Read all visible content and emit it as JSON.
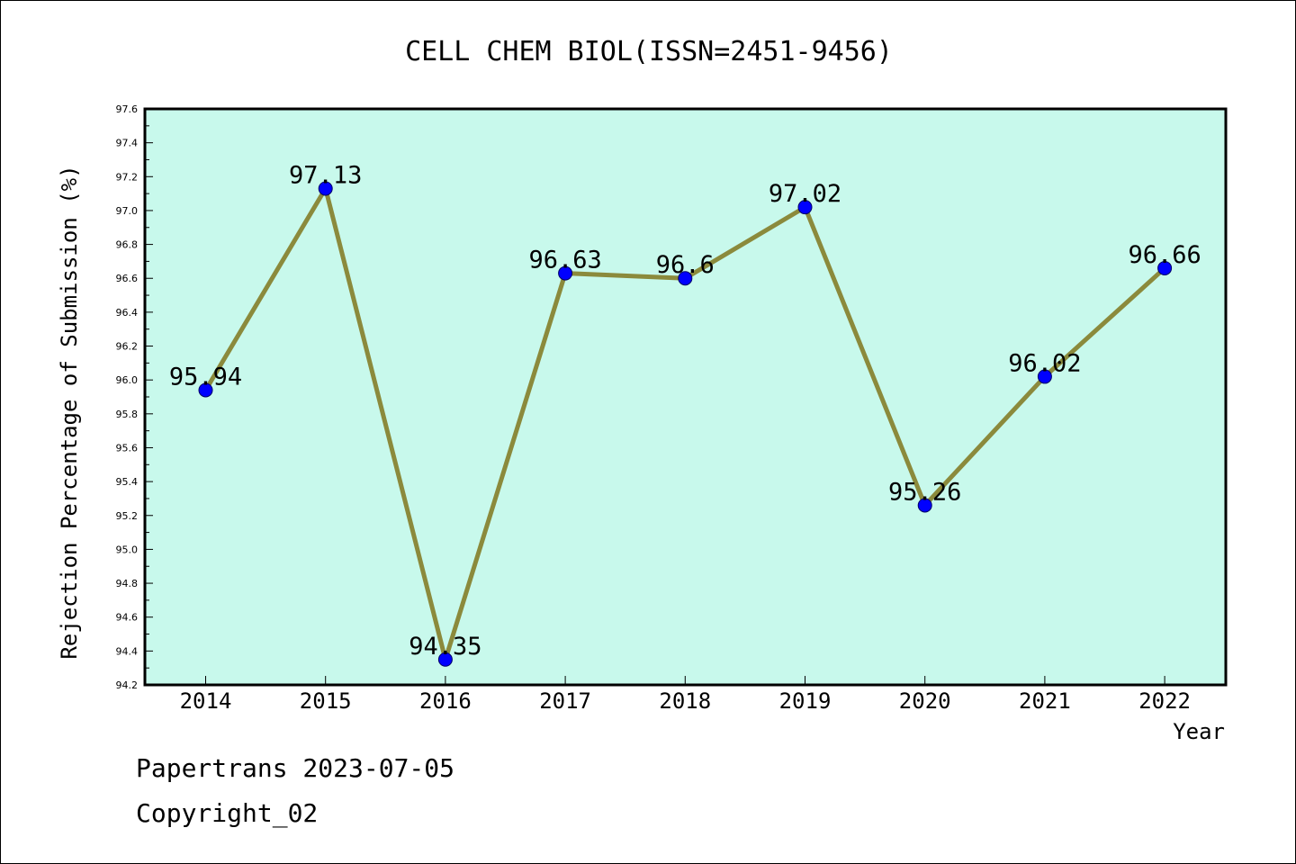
{
  "chart_data": {
    "type": "line",
    "title": "CELL CHEM BIOL(ISSN=2451-9456)",
    "xlabel": "Year",
    "ylabel": "Rejection Percentage of Submission (%)",
    "categories": [
      "2014",
      "2015",
      "2016",
      "2017",
      "2018",
      "2019",
      "2020",
      "2021",
      "2022"
    ],
    "series": [
      {
        "values": [
          95.94,
          97.13,
          94.35,
          96.63,
          96.6,
          97.02,
          95.26,
          96.02,
          96.66
        ],
        "data_labels": [
          "95.94",
          "97.13",
          "94.35",
          "96.63",
          "96.6",
          "97.02",
          "95.26",
          "96.02",
          "96.66"
        ]
      }
    ],
    "ylim": [
      94.2,
      97.6
    ],
    "yticks": [
      "94.2",
      "94.4",
      "94.6",
      "94.8",
      "95.0",
      "95.2",
      "95.4",
      "95.6",
      "95.8",
      "96.0",
      "96.2",
      "96.4",
      "96.6",
      "96.8",
      "97.0",
      "97.2",
      "97.4",
      "97.6"
    ],
    "grid": false,
    "legend": "none",
    "colors": {
      "plot_background": "#c8f9ec",
      "line": "#8b8a3c",
      "marker": "#0000ff",
      "axes": "#000000"
    }
  },
  "footer": {
    "date_line": "Papertrans 2023-07-05",
    "copyright_line": "Copyright_02"
  }
}
